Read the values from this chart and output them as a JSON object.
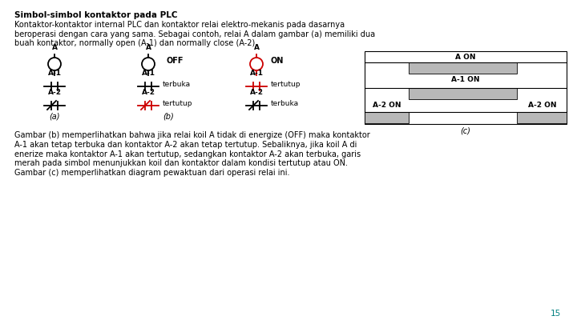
{
  "title": "Simbol-simbol kontaktor pada PLC",
  "intro_text": "Kontaktor-kontaktor internal PLC dan kontaktor relai elektro-mekanis pada dasarnya\nberoperasi dengan cara yang sama. Sebagai contoh, relai A dalam gambar (a) memiliki dua\nbuah kontaktor, normally open (A-1) dan normally close (A-2).",
  "body_text": "Gambar (b) memperlihatkan bahwa jika relai koil A tidak di energize (OFF) maka kontaktor\nA-1 akan tetap terbuka dan kontaktor A-2 akan tetap tertutup. Sebaliknya, jika koil A di\nenerize maka kontaktor A-1 akan tertutup, sedangkan kontaktor A-2 akan terbuka, garis\nmerah pada simbol menunjukkan koil dan kontaktor dalam kondisi tertutup atau ON.\nGambar (c) memperlihatkan diagram pewaktuan dari operasi relai ini.",
  "page_number": "15",
  "bg_color": "#ffffff",
  "text_color": "#000000",
  "gray_fill": "#b8b8b8",
  "red_color": "#cc0000",
  "teal_color": "#008080"
}
